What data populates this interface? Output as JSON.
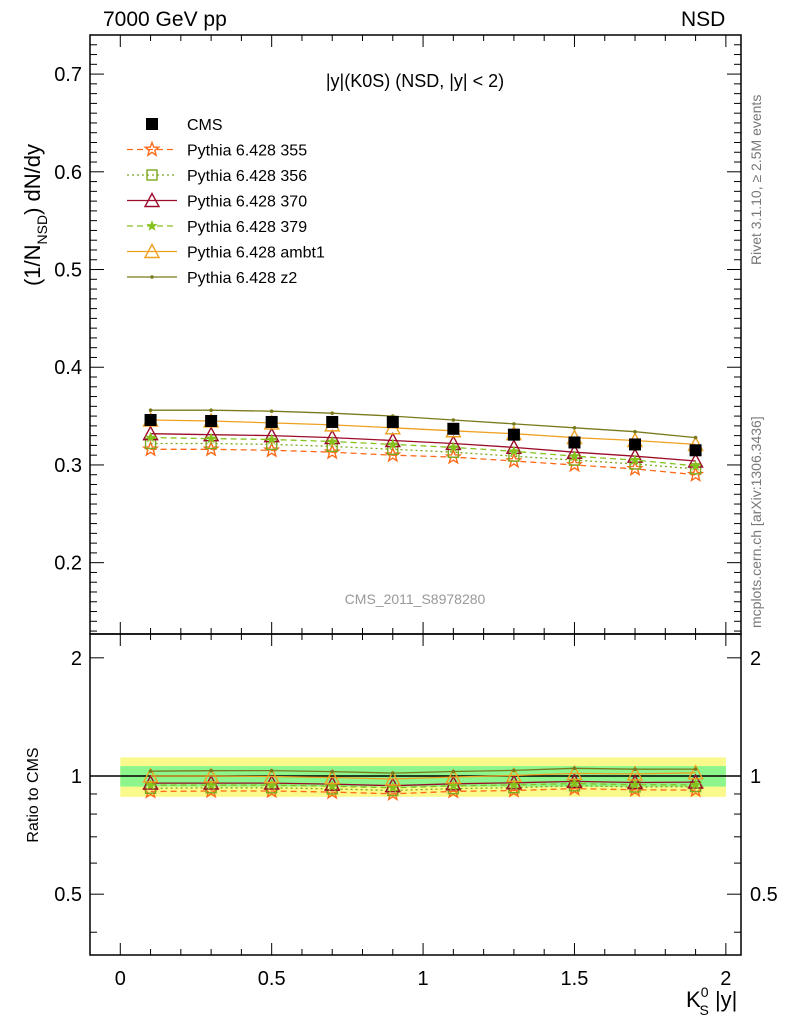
{
  "header": {
    "left": "7000 GeV pp",
    "right": "NSD"
  },
  "side_labels": {
    "rivet": "Rivet 3.1.10, ≥ 2.5M events",
    "mcplots": "mcplots.cern.ch [arXiv:1306.3436]"
  },
  "colors": {
    "cms": "#000000",
    "p355": "#ff6a1a",
    "p356": "#7aa81e",
    "p370": "#9b0c2a",
    "p379": "#86c21e",
    "ambt1": "#f0a020",
    "z2": "#7a7a1c",
    "band_inner": "#8cf58c",
    "band_outer": "#fafa8c"
  },
  "chart_data": {
    "type": "line",
    "title": "|y|(K0S) (NSD, |y| < 2)",
    "watermark": "CMS_2011_S8978280",
    "xlabel": "K_S^0 |y|",
    "ylabel": "(1/N_NSD) dN/dy",
    "ratio_ylabel": "Ratio to CMS",
    "xlim": [
      -0.1,
      2.05
    ],
    "ylim": [
      0.127,
      0.74
    ],
    "ratio_ylim": [
      0.35,
      2.3
    ],
    "xticks": [
      "0",
      "0.5",
      "1",
      "1.5",
      "2"
    ],
    "yticks": [
      "0.2",
      "0.3",
      "0.4",
      "0.5",
      "0.6",
      "0.7"
    ],
    "ratio_yticks": [
      "0.5",
      "1",
      "2"
    ],
    "legend_position": "top-left",
    "x": [
      0.1,
      0.3,
      0.5,
      0.7,
      0.9,
      1.1,
      1.3,
      1.5,
      1.7,
      1.9
    ],
    "series": [
      {
        "name": "CMS",
        "style": "marker",
        "marker": "filled-square",
        "color": "#000000",
        "values": [
          0.346,
          0.345,
          0.344,
          0.344,
          0.344,
          0.337,
          0.331,
          0.323,
          0.321,
          0.315
        ]
      },
      {
        "name": "Pythia 6.428 355",
        "style": "dashed",
        "marker": "star",
        "color": "#ff6a1a",
        "values": [
          0.316,
          0.316,
          0.315,
          0.313,
          0.31,
          0.308,
          0.304,
          0.3,
          0.296,
          0.29
        ]
      },
      {
        "name": "Pythia 6.428 356",
        "style": "dotted",
        "marker": "open-square",
        "color": "#7aa81e",
        "values": [
          0.322,
          0.322,
          0.321,
          0.319,
          0.316,
          0.313,
          0.309,
          0.305,
          0.301,
          0.296
        ]
      },
      {
        "name": "Pythia 6.428 370",
        "style": "solid",
        "marker": "open-triangle",
        "color": "#9b0c2a",
        "values": [
          0.332,
          0.331,
          0.33,
          0.328,
          0.325,
          0.322,
          0.318,
          0.313,
          0.309,
          0.304
        ]
      },
      {
        "name": "Pythia 6.428 379",
        "style": "dashed",
        "marker": "small-star",
        "color": "#86c21e",
        "values": [
          0.328,
          0.327,
          0.326,
          0.324,
          0.321,
          0.318,
          0.314,
          0.309,
          0.305,
          0.299
        ]
      },
      {
        "name": "Pythia 6.428 ambt1",
        "style": "solid",
        "marker": "open-triangle",
        "color": "#f0a020",
        "values": [
          0.346,
          0.345,
          0.343,
          0.341,
          0.338,
          0.335,
          0.332,
          0.328,
          0.325,
          0.321
        ]
      },
      {
        "name": "Pythia 6.428 z2",
        "style": "solid",
        "marker": "dot",
        "color": "#7a7a1c",
        "values": [
          0.356,
          0.356,
          0.355,
          0.353,
          0.35,
          0.346,
          0.342,
          0.338,
          0.334,
          0.328
        ]
      }
    ],
    "ratio_bands": {
      "inner": [
        0.94,
        1.06
      ],
      "outer": [
        0.885,
        1.115
      ]
    }
  }
}
